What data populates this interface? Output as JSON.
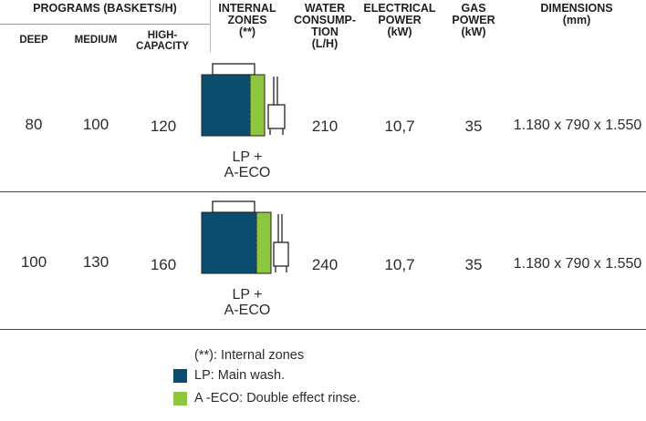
{
  "headers": {
    "programs": "PROGRAMS (BASKETS/H)",
    "deep": "DEEP",
    "medium": "MEDIUM",
    "high_capacity": "HIGH-\nCAPACITY",
    "internal_zones": "INTERNAL\nZONES\n(**)",
    "water": "WATER\nCONSUMP-\nTION\n(L/H)",
    "electrical": "ELECTRICAL\nPOWER\n(kW)",
    "gas": "GAS\nPOWER\n(kW)",
    "dimensions": "DIMENSIONS\n(mm)"
  },
  "rows": [
    {
      "deep": "80",
      "medium": "100",
      "high": "120",
      "zones": "LP +\nA-ECO",
      "water": "210",
      "electrical": "10,7",
      "gas": "35",
      "dimensions": "1.180 x 790 x 1.550"
    },
    {
      "deep": "100",
      "medium": "130",
      "high": "160",
      "zones": "LP +\nA-ECO",
      "water": "240",
      "electrical": "10,7",
      "gas": "35",
      "dimensions": "1.180 x 790 x 1.550"
    }
  ],
  "legend": {
    "note": "(**): Internal zones",
    "items": [
      {
        "text": "LP: Main wash.",
        "color": "#0b4d6e"
      },
      {
        "text": "A -ECO: Double effect rinse.",
        "color": "#8dc63f"
      }
    ]
  },
  "colors": {
    "main_wash": "#0b4d6e",
    "rinse": "#8dc63f"
  }
}
